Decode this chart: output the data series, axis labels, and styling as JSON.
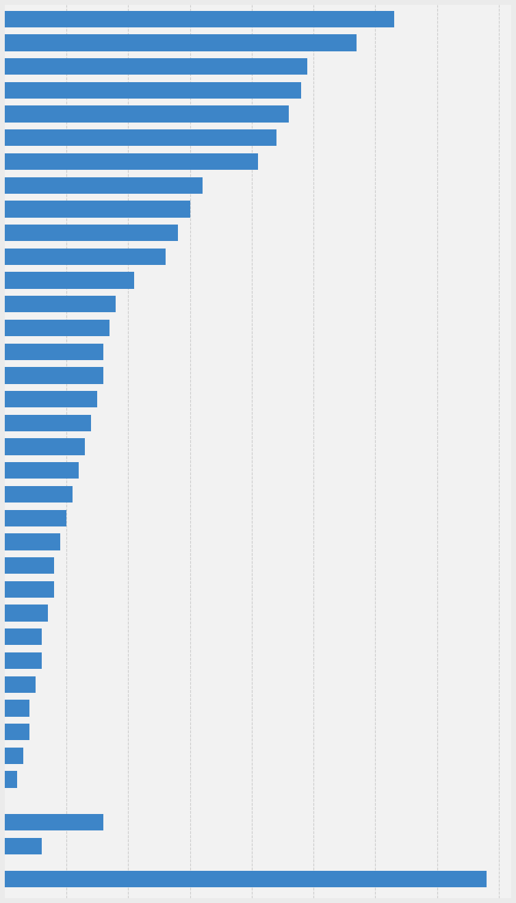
{
  "values": [
    63,
    57,
    49,
    48,
    46,
    44,
    41,
    32,
    30,
    28,
    26,
    21,
    18,
    17,
    16,
    16,
    15,
    14,
    13,
    12,
    11,
    10,
    9,
    8,
    8,
    7,
    6,
    6,
    5,
    4,
    4,
    3,
    2,
    16,
    6,
    78
  ],
  "bar_color": "#3d85c8",
  "background_color": "#ebebeb",
  "plot_background": "#f2f2f2",
  "gridline_color": "#cccccc",
  "xlim": [
    0,
    82
  ],
  "figsize": [
    7.54,
    13.19
  ],
  "dpi": 100,
  "bar_height": 0.7,
  "n_bars": 36,
  "gap_before_last_two": true,
  "grid_ticks": [
    10,
    20,
    30,
    40,
    50,
    60,
    70,
    80
  ]
}
